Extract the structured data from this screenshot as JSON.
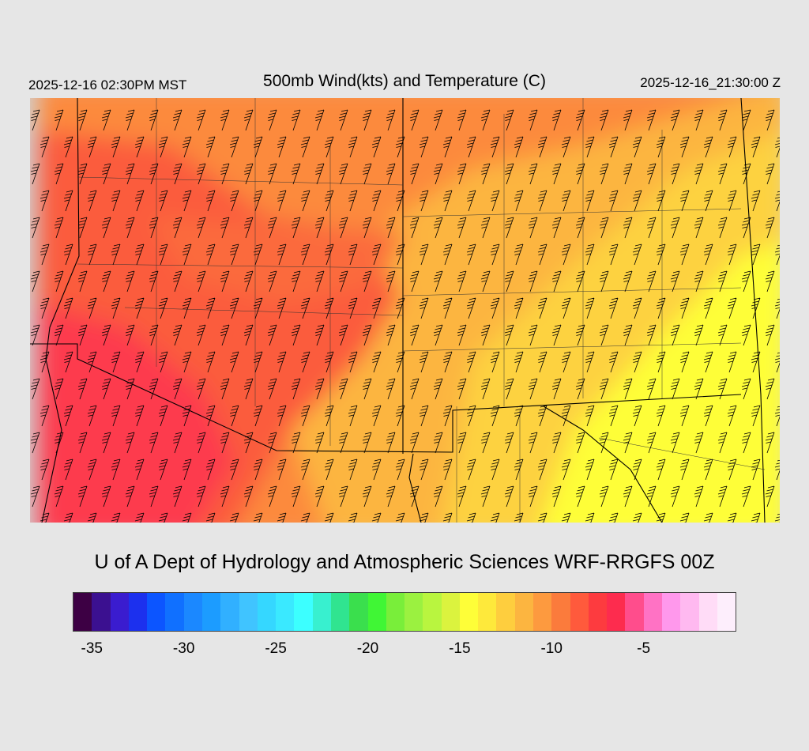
{
  "header": {
    "local_time": "2025-12-16 02:30PM MST",
    "title": "500mb Wind(kts) and Temperature (C)",
    "utc_time": "2025-12-16_21:30:00 Z"
  },
  "footer": {
    "credit": "U of A Dept of Hydrology and Atmospheric Sciences WRF-RRGFS 00Z"
  },
  "colorbar": {
    "colors": [
      "#3d0044",
      "#3b1090",
      "#3a1ccf",
      "#1c30ee",
      "#0c55ff",
      "#1070ff",
      "#1b88ff",
      "#1c9cff",
      "#31b0ff",
      "#40c4ff",
      "#35d7ff",
      "#3ae9ff",
      "#3cffff",
      "#38f0cf",
      "#30e490",
      "#3adf4d",
      "#40f635",
      "#79ee3a",
      "#9bf140",
      "#b9f53f",
      "#dbf33e",
      "#fefe38",
      "#fee93b",
      "#fece3e",
      "#fcb540",
      "#fd9a3f",
      "#fb7b3c",
      "#ff5a3c",
      "#fd3b3f",
      "#fd2c4e",
      "#ff4d8c",
      "#ff72c4",
      "#ff98ec",
      "#ffb9f0",
      "#ffdcf7",
      "#fdeefc"
    ],
    "tick_labels": [
      "-35",
      "-30",
      "-25",
      "-20",
      "-15",
      "-10",
      "-5"
    ]
  },
  "map": {
    "field": "500mb temperature (C) with wind barbs (kts)",
    "colors": {
      "background_no_data": "#d2d2d2",
      "coldest": "#fd3b4e",
      "cold": "#fb5c3e",
      "mid": "#fc8a3e",
      "warm": "#fcb540",
      "warmer": "#fdd23f",
      "warmest": "#fefe38"
    }
  }
}
